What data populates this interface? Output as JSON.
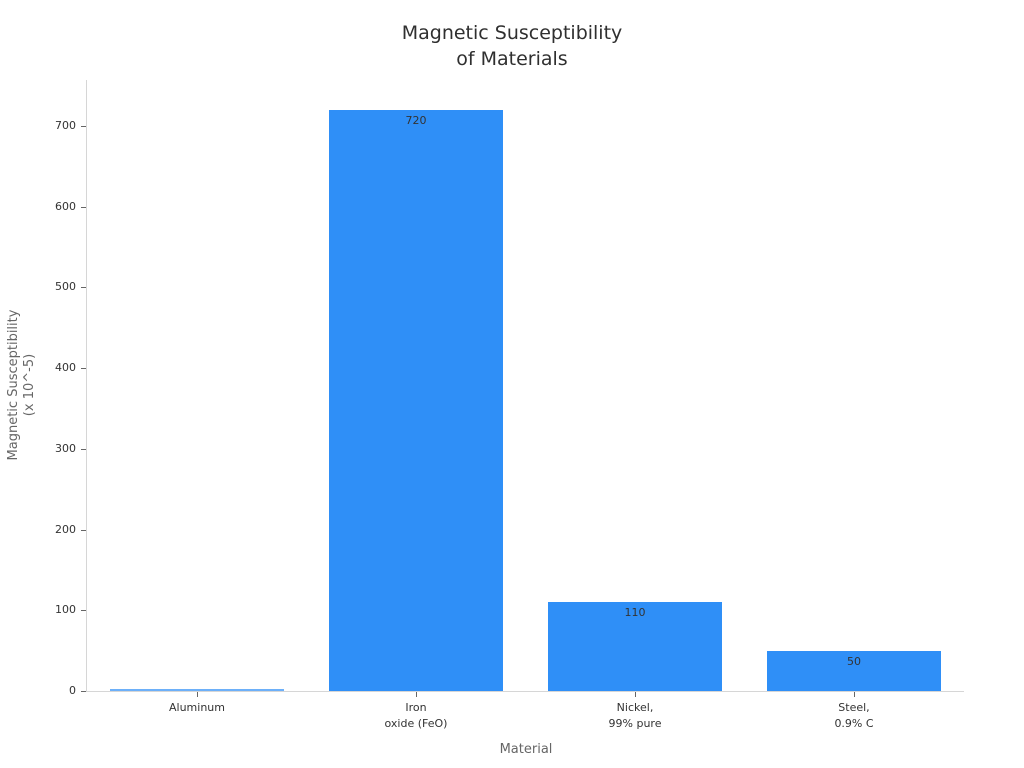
{
  "chart_data": {
    "type": "bar",
    "title": "Magnetic Susceptibility\nof Materials",
    "title_lines": [
      "Magnetic Susceptibility",
      "of Materials"
    ],
    "xlabel": "Material",
    "ylabel": "Magnetic Susceptibility\n(x 10^-5)",
    "ylabel_lines": [
      "Magnetic Susceptibility",
      "(x 10^-5)"
    ],
    "categories": [
      "Aluminum",
      "Iron\noxide (FeO)",
      "Nickel,\n99% pure",
      "Steel,\n0.9% C"
    ],
    "category_lines": [
      [
        "Aluminum"
      ],
      [
        "Iron",
        "oxide (FeO)"
      ],
      [
        "Nickel,",
        "99% pure"
      ],
      [
        "Steel,",
        "0.9% C"
      ]
    ],
    "values": [
      2.2,
      720,
      110,
      50
    ],
    "data_labels": [
      "",
      "720",
      "110",
      "50"
    ],
    "ylim": [
      0,
      757
    ],
    "yticks": [
      0,
      100,
      200,
      300,
      400,
      500,
      600,
      700
    ],
    "ytick_labels": [
      "0",
      "100",
      "200",
      "300",
      "400",
      "500",
      "600",
      "700"
    ],
    "grid": false,
    "legend": null,
    "bar_color": "#2f8ff7"
  }
}
